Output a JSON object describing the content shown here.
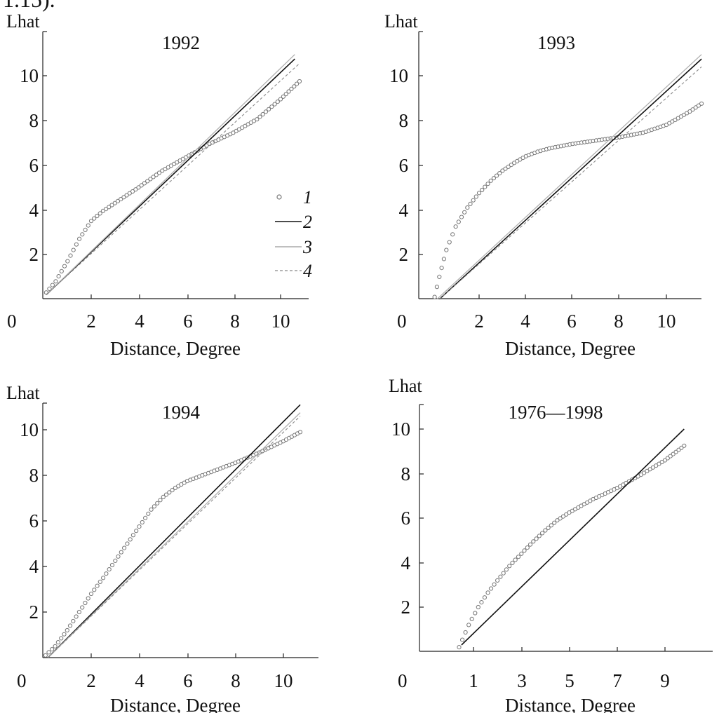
{
  "page": {
    "top_fragment": "1.15)."
  },
  "chart_data": [
    {
      "type": "scatter",
      "title": "1992",
      "xlabel": "Distance, Degree",
      "ylabel": "Lhat",
      "xlim": [
        0,
        11.3
      ],
      "ylim": [
        0,
        12
      ],
      "xticks": [
        "0",
        "2",
        "4",
        "6",
        "8",
        "10"
      ],
      "yticks": [
        "2",
        "4",
        "6",
        "8",
        "10"
      ],
      "legend": {
        "position": "middle-right",
        "entries": [
          "1",
          "2",
          "3",
          "4"
        ]
      },
      "series": [
        {
          "name": "1",
          "style": "circles",
          "x": [
            0.1,
            0.5,
            1,
            1.5,
            2,
            2.5,
            3,
            4,
            5,
            6,
            7,
            8,
            9,
            10,
            10.8
          ],
          "y": [
            0.3,
            0.8,
            1.7,
            2.7,
            3.5,
            3.95,
            4.3,
            5.0,
            5.75,
            6.35,
            6.95,
            7.45,
            8.05,
            8.95,
            9.75
          ]
        },
        {
          "name": "2",
          "style": "solid-black",
          "x": [
            0.1,
            10.6
          ],
          "y": [
            0.2,
            10.75
          ]
        },
        {
          "name": "3",
          "style": "solid-gray",
          "x": [
            0.1,
            10.6
          ],
          "y": [
            0.2,
            10.95
          ]
        },
        {
          "name": "4",
          "style": "dashed-gray",
          "x": [
            0.1,
            10.8
          ],
          "y": [
            0.2,
            10.55
          ]
        }
      ]
    },
    {
      "type": "scatter",
      "title": "1993",
      "xlabel": "Distance, Degree",
      "ylabel": "Lhat",
      "xlim": [
        0,
        12
      ],
      "ylim": [
        0,
        12
      ],
      "xticks": [
        "0",
        "2",
        "4",
        "6",
        "8",
        "10"
      ],
      "yticks": [
        "2",
        "4",
        "6",
        "8",
        "10"
      ],
      "series": [
        {
          "name": "1",
          "style": "circles",
          "x": [
            0.1,
            0.3,
            0.6,
            1,
            1.5,
            2,
            2.5,
            3,
            3.5,
            4,
            4.5,
            5,
            6,
            7,
            8,
            9,
            10,
            11,
            11.5
          ],
          "y": [
            0.1,
            1.0,
            2.2,
            3.25,
            4.1,
            4.75,
            5.3,
            5.75,
            6.1,
            6.4,
            6.6,
            6.75,
            6.95,
            7.1,
            7.25,
            7.45,
            7.8,
            8.4,
            8.75
          ]
        },
        {
          "name": "2",
          "style": "solid-black",
          "x": [
            0.3,
            11.5
          ],
          "y": [
            0,
            10.75
          ]
        },
        {
          "name": "3",
          "style": "solid-gray",
          "x": [
            0.2,
            11.5
          ],
          "y": [
            0,
            10.95
          ]
        },
        {
          "name": "4",
          "style": "dashed-gray",
          "x": [
            0.3,
            11.5
          ],
          "y": [
            0,
            10.4
          ]
        }
      ]
    },
    {
      "type": "scatter",
      "title": "1994",
      "xlabel": "Distance, Degree",
      "ylabel": "Lhat",
      "xlim": [
        0,
        11.3
      ],
      "ylim": [
        0,
        12
      ],
      "xticks": [
        "0",
        "2",
        "4",
        "6",
        "8",
        "10"
      ],
      "yticks": [
        "2",
        "4",
        "6",
        "8",
        "10"
      ],
      "series": [
        {
          "name": "1",
          "style": "circles",
          "x": [
            0.1,
            0.5,
            1,
            1.5,
            2,
            2.5,
            3,
            3.5,
            4,
            4.5,
            5,
            5.5,
            6,
            6.5,
            7,
            8,
            9,
            10,
            10.7
          ],
          "y": [
            0.1,
            0.5,
            1.2,
            2.0,
            2.8,
            3.5,
            4.25,
            5.0,
            5.75,
            6.5,
            7.05,
            7.45,
            7.75,
            7.95,
            8.15,
            8.55,
            9.0,
            9.5,
            9.9
          ]
        },
        {
          "name": "2",
          "style": "solid-black",
          "x": [
            0.2,
            10.7
          ],
          "y": [
            0,
            11.1
          ]
        },
        {
          "name": "3",
          "style": "solid-gray",
          "x": [
            0.2,
            10.7
          ],
          "y": [
            0,
            10.75
          ]
        },
        {
          "name": "4",
          "style": "dashed-gray",
          "x": [
            0.2,
            10.7
          ],
          "y": [
            0,
            10.6
          ]
        }
      ]
    },
    {
      "type": "scatter",
      "title": "1976—1998",
      "xlabel": "Distance, Degree",
      "ylabel": "Lhat",
      "xlim": [
        0,
        10.3
      ],
      "ylim": [
        0,
        11
      ],
      "xticks": [
        "0",
        "1",
        "3",
        "5",
        "7",
        "9"
      ],
      "yticks": [
        "2",
        "4",
        "6",
        "8",
        "10"
      ],
      "series": [
        {
          "name": "1",
          "style": "circles",
          "x": [
            0.4,
            0.8,
            1.2,
            1.6,
            2,
            2.5,
            3,
            3.5,
            4,
            4.5,
            5,
            6,
            7,
            8,
            9,
            9.8
          ],
          "y": [
            0.2,
            1.2,
            2.0,
            2.65,
            3.2,
            3.85,
            4.4,
            4.95,
            5.45,
            5.9,
            6.25,
            6.85,
            7.35,
            7.95,
            8.6,
            9.25
          ]
        },
        {
          "name": "2",
          "style": "solid-black",
          "x": [
            0.5,
            9.8
          ],
          "y": [
            0.3,
            10.0
          ]
        }
      ]
    }
  ]
}
